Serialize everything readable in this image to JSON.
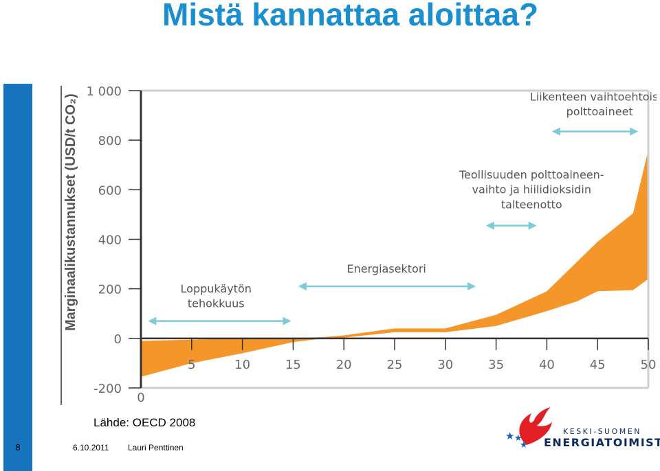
{
  "slide": {
    "title": "Mistä kannattaa aloittaa?",
    "source": "Lähde: OECD 2008",
    "page_number": "8",
    "date": "6.10.2011",
    "author": "Lauri Penttinen"
  },
  "logo": {
    "line1": "KESKI-SUOMEN",
    "line2": "ENERGIATOIMISTO"
  },
  "colors": {
    "title": "#1a8fd0",
    "side_bar": "#1673be",
    "band_fill": "#f5962a",
    "arrow": "#7dcbd9",
    "axis_text": "#6a6a6a",
    "label_text": "#555555"
  },
  "chart_data": {
    "type": "area",
    "ylabel": "Marginaalikustannukset (USD/t CO₂)",
    "xlabel": "",
    "xlim": [
      0,
      50
    ],
    "ylim": [
      -200,
      1000
    ],
    "x_ticks": [
      0,
      5,
      10,
      15,
      20,
      25,
      30,
      35,
      40,
      45,
      50
    ],
    "y_ticks": [
      -200,
      0,
      200,
      400,
      600,
      800,
      1000
    ],
    "y_tick_labels": [
      "-200",
      "0",
      "200",
      "400",
      "600",
      "800",
      "1 000"
    ],
    "grid": false,
    "band_upper": [
      [
        0,
        -10
      ],
      [
        5,
        -5
      ],
      [
        10,
        0
      ],
      [
        15,
        0
      ],
      [
        18,
        5
      ],
      [
        20,
        12
      ],
      [
        25,
        40
      ],
      [
        30,
        40
      ],
      [
        35,
        95
      ],
      [
        40,
        190
      ],
      [
        45,
        390
      ],
      [
        48.5,
        505
      ],
      [
        50,
        760
      ]
    ],
    "band_lower": [
      [
        0,
        -155
      ],
      [
        5,
        -100
      ],
      [
        10,
        -60
      ],
      [
        15,
        -15
      ],
      [
        18,
        0
      ],
      [
        20,
        3
      ],
      [
        25,
        25
      ],
      [
        30,
        25
      ],
      [
        35,
        50
      ],
      [
        40,
        110
      ],
      [
        43,
        150
      ],
      [
        45,
        190
      ],
      [
        48.5,
        195
      ],
      [
        50,
        240
      ]
    ],
    "annotations": [
      {
        "text": [
          "Loppukäytön",
          "tehokkuus"
        ],
        "x_range": [
          0.7,
          14.8
        ],
        "arrow_y": 70,
        "text_x": 7.4,
        "text_y": [
          185,
          125
        ]
      },
      {
        "text": [
          "Energiasektori"
        ],
        "x_range": [
          15.5,
          33
        ],
        "arrow_y": 210,
        "text_x": 24.2,
        "text_y": [
          265
        ]
      },
      {
        "text": [
          "Teollisuuden polttoaineen-",
          "vaihto ja hiilidioksidin",
          "talteenotto"
        ],
        "x_range": [
          34,
          39
        ],
        "arrow_y": 455,
        "text_x": 38.5,
        "text_y": [
          645,
          585,
          525
        ]
      },
      {
        "text": [
          "Liikenteen vaihtoehtoiset",
          "polttoaineet"
        ],
        "x_range": [
          40.5,
          49
        ],
        "arrow_y": 835,
        "text_x": 45.2,
        "text_y": [
          960,
          900
        ]
      }
    ]
  }
}
